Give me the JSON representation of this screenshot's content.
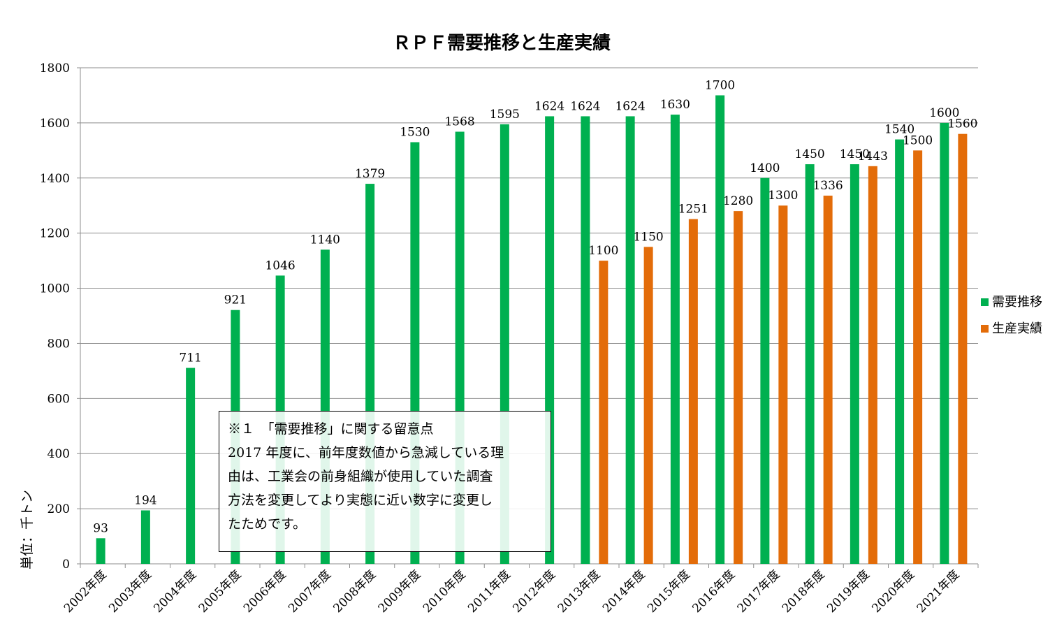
{
  "chart_data": {
    "type": "bar",
    "title": "ＲＰＦ需要推移と生産実績",
    "ylabel": "単位：千トン",
    "ylim": [
      0,
      1800
    ],
    "yticks": [
      0,
      200,
      400,
      600,
      800,
      1000,
      1200,
      1400,
      1600,
      1800
    ],
    "grid": true,
    "legend_position": "right",
    "categories": [
      "2002年度",
      "2003年度",
      "2004年度",
      "2005年度",
      "2006年度",
      "2007年度",
      "2008年度",
      "2009年度",
      "2010年度",
      "2011年度",
      "2012年度",
      "2013年度",
      "2014年度",
      "2015年度",
      "2016年度",
      "2017年度",
      "2018年度",
      "2019年度",
      "2020年度",
      "2021年度"
    ],
    "series": [
      {
        "name": "需要推移",
        "color": "#00b050",
        "values": [
          93,
          194,
          711,
          921,
          1046,
          1140,
          1379,
          1530,
          1568,
          1595,
          1624,
          1624,
          1624,
          1630,
          1700,
          1400,
          1450,
          1450,
          1540,
          1600
        ]
      },
      {
        "name": "生産実績",
        "color": "#e36c09",
        "values": [
          null,
          null,
          null,
          null,
          null,
          null,
          null,
          null,
          null,
          null,
          null,
          1100,
          1150,
          1251,
          1280,
          1300,
          1336,
          1443,
          1500,
          1560
        ]
      }
    ]
  },
  "note": {
    "lines": [
      "※１　「需要推移」に関する留意点",
      "2017 年度に、前年度数値から急減している理",
      "由は、工業会の前身組織が使用していた調査",
      "方法を変更してより実態に近い数字に変更し",
      "たためです。"
    ]
  }
}
